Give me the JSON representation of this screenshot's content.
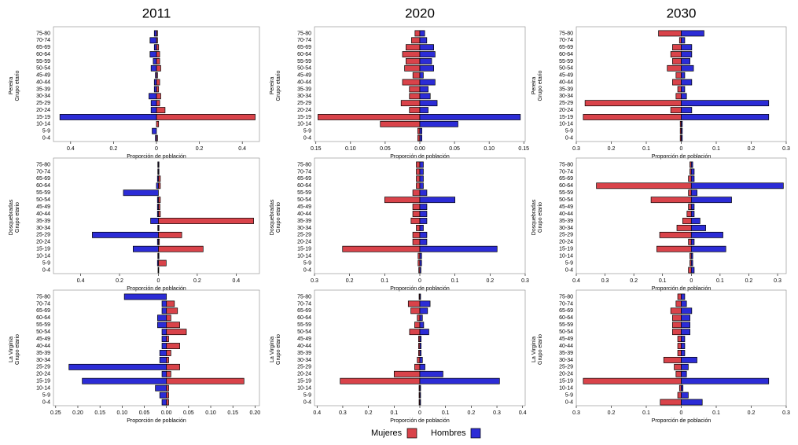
{
  "chart_data": [
    {
      "type": "pyramid",
      "title": "2011",
      "region": "Pereira",
      "ylabel": "Grupo etario",
      "xlabel": "Proporción de población",
      "categories": [
        "75-80",
        "70-74",
        "65-69",
        "60-64",
        "55-59",
        "50-54",
        "45-49",
        "40-44",
        "35-39",
        "30-34",
        "25-29",
        "20-24",
        "15-19",
        "10-14",
        "5-9",
        "0-4"
      ],
      "series": [
        {
          "name": "Mujeres",
          "color": "#d9434a",
          "values": [
            0.005,
            0.005,
            0.01,
            0.015,
            0.015,
            0.02,
            0.005,
            0.015,
            0.01,
            0.02,
            0.015,
            0.04,
            0.46,
            0.01,
            0.0,
            0.005
          ]
        },
        {
          "name": "Hombres",
          "color": "#2c2cd6",
          "values": [
            -0.01,
            -0.03,
            -0.01,
            -0.03,
            -0.015,
            -0.025,
            -0.005,
            -0.01,
            -0.01,
            -0.035,
            -0.025,
            -0.025,
            -0.45,
            0,
            -0.02,
            -0.005
          ]
        }
      ],
      "xlim": [
        -0.48,
        0.48
      ],
      "xticks": [
        {
          "value": -0.4,
          "label": "0.4"
        },
        {
          "value": -0.2,
          "label": "0.2"
        },
        0,
        0.2,
        0.4
      ]
    },
    {
      "type": "pyramid",
      "title": "2020",
      "region": "Pereira",
      "ylabel": "Grupo etario",
      "xlabel": "Proporción de población",
      "categories": [
        "75-80",
        "70-74",
        "65-69",
        "60-64",
        "55-59",
        "50-54",
        "45-49",
        "40-44",
        "35-39",
        "30-34",
        "25-29",
        "20-24",
        "15-19",
        "10-14",
        "5-9",
        "0-4"
      ],
      "series": [
        {
          "name": "Mujeres",
          "color": "#d9434a",
          "values": [
            -0.007,
            -0.012,
            -0.02,
            -0.025,
            -0.02,
            -0.022,
            -0.01,
            -0.025,
            -0.015,
            -0.015,
            -0.027,
            -0.015,
            -0.147,
            -0.057,
            -0.003,
            -0.003
          ]
        },
        {
          "name": "Hombres",
          "color": "#2c2cd6",
          "values": [
            0.007,
            0.01,
            0.02,
            0.022,
            0.017,
            0.02,
            0.005,
            0.022,
            0.012,
            0.015,
            0.025,
            0.012,
            0.145,
            0.055,
            0.003,
            0.003
          ]
        }
      ],
      "xlim": [
        -0.152,
        0.152
      ],
      "xticks": [
        {
          "value": -0.15,
          "label": "0.15"
        },
        {
          "value": -0.1,
          "label": "0.10"
        },
        {
          "value": -0.05,
          "label": "0.05"
        },
        {
          "value": 0,
          "label": "0.00"
        },
        0.05,
        {
          "value": 0.1,
          "label": "0.10"
        },
        0.15
      ]
    },
    {
      "type": "pyramid",
      "title": "2030",
      "region": "Pereira",
      "ylabel": "Grupo etario",
      "xlabel": "Proporción de población",
      "categories": [
        "75-80",
        "70-74",
        "65-69",
        "60-64",
        "55-59",
        "50-54",
        "45-49",
        "40-44",
        "35-39",
        "30-34",
        "25-29",
        "20-24",
        "15-19",
        "10-14",
        "5-9",
        "0-4"
      ],
      "series": [
        {
          "name": "Mujeres",
          "color": "#d9434a",
          "values": [
            -0.065,
            -0.005,
            -0.025,
            -0.03,
            -0.025,
            -0.04,
            -0.015,
            -0.025,
            -0.01,
            -0.015,
            -0.275,
            -0.03,
            -0.28,
            -0.003,
            -0.003,
            -0.003
          ]
        },
        {
          "name": "Hombres",
          "color": "#2c2cd6",
          "values": [
            0.065,
            0.01,
            0.03,
            0.03,
            0.025,
            0.035,
            0.01,
            0.03,
            0.01,
            0.015,
            0.25,
            0.03,
            0.25,
            0.003,
            0.003,
            0.003
          ]
        }
      ],
      "xlim": [
        -0.3,
        0.3
      ],
      "xticks": [
        {
          "value": -0.3,
          "label": "0.3"
        },
        {
          "value": -0.2,
          "label": "0.2"
        },
        {
          "value": -0.1,
          "label": "0.1"
        },
        0,
        0.1,
        0.2,
        0.3
      ]
    },
    {
      "type": "pyramid",
      "region": "Dosquebradas",
      "ylabel": "Grupo etario",
      "xlabel": "Proporción de población",
      "categories": [
        "75-80",
        "70-74",
        "65-69",
        "60-64",
        "55-59",
        "50-54",
        "45-49",
        "40-44",
        "35-39",
        "30-34",
        "25-29",
        "20-24",
        "15-19",
        "10-14",
        "5-9",
        "0-4"
      ],
      "series": [
        {
          "name": "Mujeres",
          "color": "#d9434a",
          "values": [
            0.003,
            0.003,
            0.01,
            0.01,
            0,
            0.01,
            0.008,
            0.01,
            0.49,
            0.003,
            0.12,
            0.005,
            0.23,
            0.003,
            0.04,
            0.002
          ]
        },
        {
          "name": "Hombres",
          "color": "#2c2cd6",
          "values": [
            -0.003,
            -0.003,
            -0.005,
            -0.01,
            -0.18,
            -0.005,
            -0.005,
            -0.005,
            -0.04,
            -0.003,
            -0.34,
            -0.005,
            -0.13,
            -0.003,
            -0.005,
            -0.002
          ]
        }
      ],
      "xlim": [
        -0.54,
        0.52
      ],
      "xticks": [
        {
          "value": -0.4,
          "label": "0.4"
        },
        {
          "value": -0.2,
          "label": "0.2"
        },
        0,
        0.2,
        0.4
      ]
    },
    {
      "type": "pyramid",
      "region": "Dosquebradas",
      "ylabel": "Grupo etario",
      "xlabel": "Proporción de población",
      "categories": [
        "75-80",
        "70-74",
        "65-69",
        "60-64",
        "55-59",
        "50-54",
        "45-49",
        "40-44",
        "35-39",
        "30-34",
        "25-29",
        "20-24",
        "15-19",
        "10-14",
        "5-9",
        "0-4"
      ],
      "series": [
        {
          "name": "Mujeres",
          "color": "#d9434a",
          "values": [
            -0.01,
            -0.01,
            -0.01,
            -0.01,
            -0.02,
            -0.1,
            -0.02,
            -0.02,
            -0.025,
            -0.01,
            -0.02,
            -0.02,
            -0.22,
            -0.005,
            -0.005,
            -0.003
          ]
        },
        {
          "name": "Hombres",
          "color": "#2c2cd6",
          "values": [
            0.01,
            0.01,
            0.01,
            0.01,
            0.02,
            0.1,
            0.02,
            0.02,
            0.02,
            0.01,
            0.02,
            0.02,
            0.22,
            0.005,
            0.005,
            0.003
          ]
        }
      ],
      "xlim": [
        -0.3,
        0.3
      ],
      "xticks": [
        {
          "value": -0.3,
          "label": "0.3"
        },
        {
          "value": -0.2,
          "label": "0.2"
        },
        {
          "value": -0.1,
          "label": "0.1"
        },
        0,
        0.1,
        0.2,
        0.3
      ]
    },
    {
      "type": "pyramid",
      "region": "Dosquebradas",
      "ylabel": "Grupo etario",
      "xlabel": "Proporción de población",
      "categories": [
        "75-80",
        "70-74",
        "65-69",
        "60-64",
        "55-59",
        "50-54",
        "45-49",
        "40-44",
        "35-39",
        "30-34",
        "25-29",
        "20-24",
        "15-19",
        "10-14",
        "5-9",
        "0-4"
      ],
      "series": [
        {
          "name": "Mujeres",
          "color": "#d9434a",
          "values": [
            -0.005,
            -0.005,
            -0.01,
            -0.33,
            -0.01,
            -0.14,
            -0.01,
            -0.015,
            -0.03,
            -0.05,
            -0.11,
            -0.01,
            -0.12,
            -0.005,
            -0.005,
            -0.01
          ]
        },
        {
          "name": "Hombres",
          "color": "#2c2cd6",
          "values": [
            0.005,
            0.01,
            0.01,
            0.32,
            0.02,
            0.14,
            0.01,
            0.01,
            0.03,
            0.05,
            0.11,
            0.01,
            0.12,
            0.005,
            0.005,
            0.01
          ]
        }
      ],
      "xlim": [
        -0.4,
        0.33
      ],
      "xticks": [
        {
          "value": -0.4,
          "label": "0.4"
        },
        {
          "value": -0.3,
          "label": "0.3"
        },
        {
          "value": -0.2,
          "label": "0.2"
        },
        {
          "value": -0.1,
          "label": "0.1"
        },
        0,
        0.1,
        0.2,
        0.3
      ]
    },
    {
      "type": "pyramid",
      "region": "La Virginia",
      "ylabel": "Grupo etario",
      "xlabel": "Proporción de población",
      "categories": [
        "75-80",
        "70-74",
        "65-69",
        "60-64",
        "55-59",
        "50-54",
        "45-49",
        "40-44",
        "35-39",
        "30-34",
        "25-29",
        "20-24",
        "15-19",
        "10-14",
        "5-9",
        "0-4"
      ],
      "series": [
        {
          "name": "Mujeres",
          "color": "#d9434a",
          "values": [
            0,
            0.018,
            0.025,
            0.01,
            0.03,
            0.045,
            0.005,
            0.03,
            0.01,
            0.005,
            0.03,
            0.01,
            0.175,
            0.005,
            0.005,
            0.005
          ]
        },
        {
          "name": "Hombres",
          "color": "#2c2cd6",
          "values": [
            -0.095,
            -0.01,
            -0.01,
            -0.02,
            -0.02,
            -0.01,
            -0.01,
            -0.01,
            -0.015,
            -0.015,
            -0.22,
            -0.01,
            -0.19,
            -0.025,
            -0.015,
            -0.01
          ]
        }
      ],
      "xlim": [
        -0.255,
        0.21
      ],
      "xticks": [
        {
          "value": -0.25,
          "label": "0.25"
        },
        {
          "value": -0.2,
          "label": "0.20"
        },
        {
          "value": -0.15,
          "label": "0.15"
        },
        {
          "value": -0.1,
          "label": "0.10"
        },
        {
          "value": -0.05,
          "label": "0.05"
        },
        {
          "value": 0,
          "label": "0.00"
        },
        0.05,
        {
          "value": 0.1,
          "label": "0.10"
        },
        0.15,
        {
          "value": 0.2,
          "label": "0.20"
        }
      ]
    },
    {
      "type": "pyramid",
      "region": "La Virginia",
      "ylabel": "Grupo etario",
      "xlabel": "Proporción de población",
      "categories": [
        "75-80",
        "70-74",
        "65-69",
        "60-64",
        "55-59",
        "50-54",
        "45-49",
        "40-44",
        "35-39",
        "30-34",
        "25-29",
        "20-24",
        "15-19",
        "10-14",
        "5-9",
        "0-4"
      ],
      "series": [
        {
          "name": "Mujeres",
          "color": "#d9434a",
          "values": [
            -0.003,
            -0.045,
            -0.035,
            -0.01,
            -0.02,
            -0.04,
            -0.005,
            -0.005,
            -0.005,
            -0.01,
            -0.02,
            -0.1,
            -0.31,
            -0.003,
            -0.003,
            -0.003
          ]
        },
        {
          "name": "Hombres",
          "color": "#2c2cd6",
          "values": [
            0.003,
            0.04,
            0.03,
            0.01,
            0.015,
            0.035,
            0.005,
            0.005,
            0.005,
            0.01,
            0.02,
            0.09,
            0.31,
            0.003,
            0.003,
            0.003
          ]
        }
      ],
      "xlim": [
        -0.41,
        0.41
      ],
      "xticks": [
        {
          "value": -0.4,
          "label": "0.4"
        },
        {
          "value": -0.3,
          "label": "0.3"
        },
        {
          "value": -0.2,
          "label": "0.2"
        },
        {
          "value": -0.1,
          "label": "0.1"
        },
        0,
        0.1,
        0.2,
        0.3,
        0.4
      ]
    },
    {
      "type": "pyramid",
      "region": "La Virginia",
      "ylabel": "Grupo etario",
      "xlabel": "Proporción de población",
      "categories": [
        "75-80",
        "70-74",
        "65-69",
        "60-64",
        "55-59",
        "50-54",
        "45-49",
        "40-44",
        "35-39",
        "30-34",
        "25-29",
        "20-24",
        "15-19",
        "10-14",
        "5-9",
        "0-4"
      ],
      "series": [
        {
          "name": "Mujeres",
          "color": "#d9434a",
          "values": [
            -0.01,
            -0.015,
            -0.03,
            -0.025,
            -0.025,
            -0.025,
            -0.01,
            -0.01,
            -0.01,
            -0.05,
            -0.02,
            -0.015,
            -0.28,
            -0.005,
            -0.01,
            -0.06
          ]
        },
        {
          "name": "Hombres",
          "color": "#2c2cd6",
          "values": [
            0.01,
            0.015,
            0.03,
            0.025,
            0.025,
            0.025,
            0.01,
            0.01,
            0.01,
            0.045,
            0.02,
            0.015,
            0.25,
            0.005,
            0.02,
            0.06
          ]
        }
      ],
      "xlim": [
        -0.3,
        0.3
      ],
      "xticks": [
        {
          "value": -0.3,
          "label": "0.3"
        },
        {
          "value": -0.2,
          "label": "0.2"
        },
        {
          "value": -0.1,
          "label": "0.1"
        },
        0,
        0.1,
        0.2,
        0.3
      ]
    }
  ]
}
